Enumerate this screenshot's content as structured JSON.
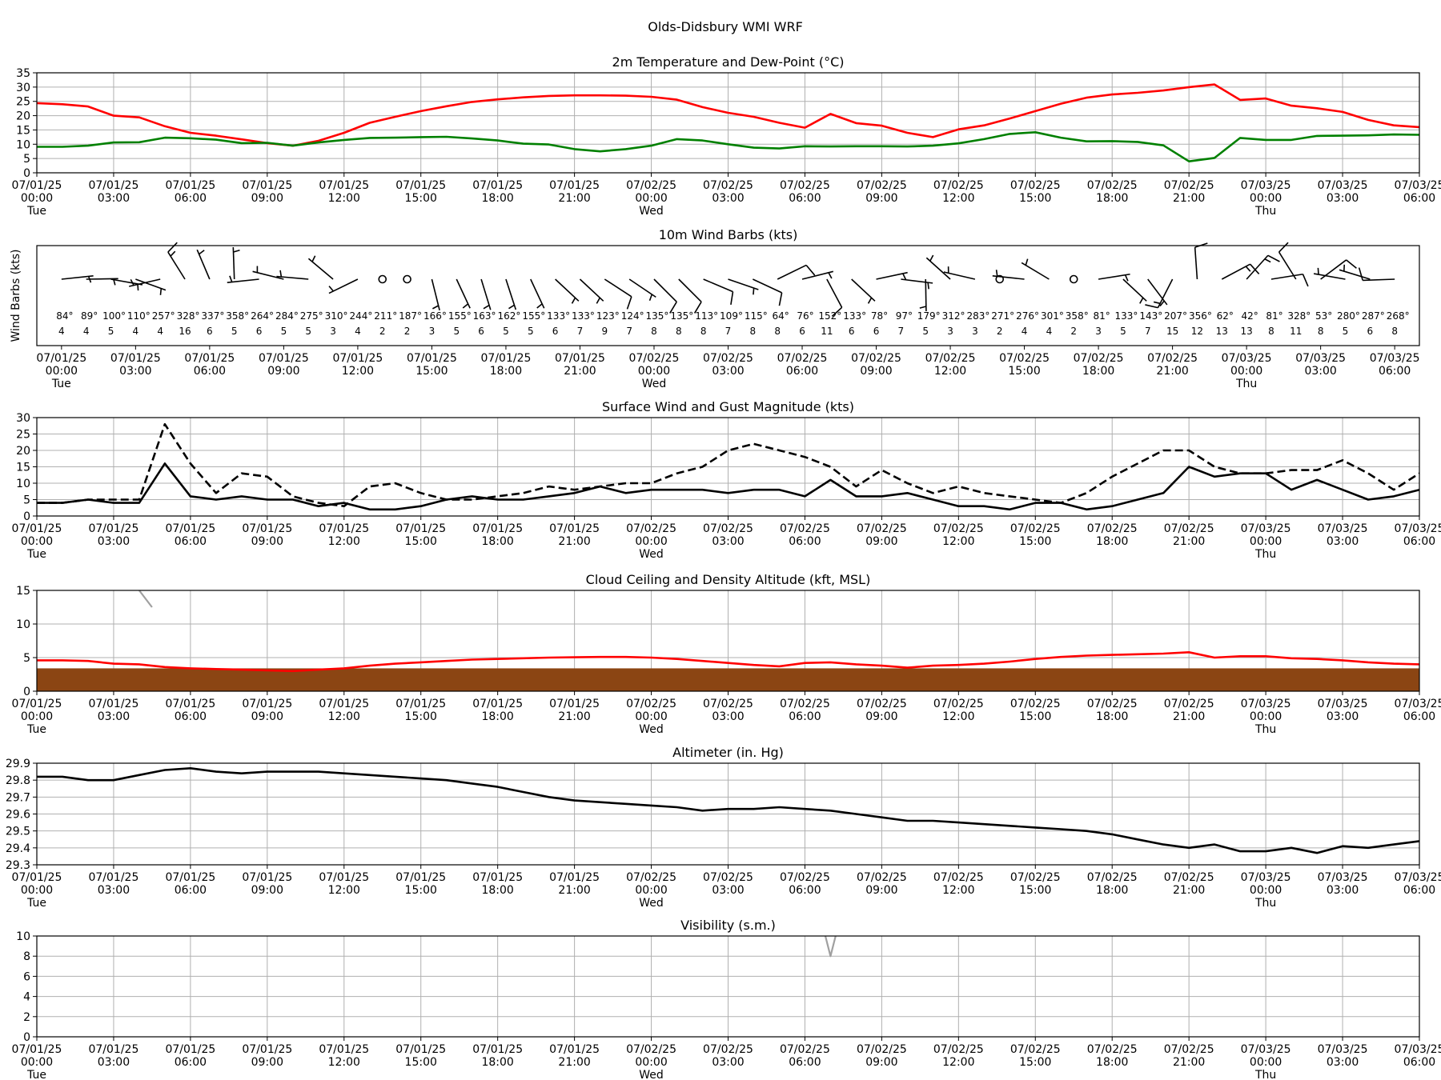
{
  "page_title": "Olds-Didsbury WMI WRF",
  "time_axis": {
    "ticks": [
      {
        "date": "07/01/25",
        "time": "00:00",
        "day": "Tue"
      },
      {
        "date": "07/01/25",
        "time": "03:00",
        "day": ""
      },
      {
        "date": "07/01/25",
        "time": "06:00",
        "day": ""
      },
      {
        "date": "07/01/25",
        "time": "09:00",
        "day": ""
      },
      {
        "date": "07/01/25",
        "time": "12:00",
        "day": ""
      },
      {
        "date": "07/01/25",
        "time": "15:00",
        "day": ""
      },
      {
        "date": "07/01/25",
        "time": "18:00",
        "day": ""
      },
      {
        "date": "07/01/25",
        "time": "21:00",
        "day": ""
      },
      {
        "date": "07/02/25",
        "time": "00:00",
        "day": "Wed"
      },
      {
        "date": "07/02/25",
        "time": "03:00",
        "day": ""
      },
      {
        "date": "07/02/25",
        "time": "06:00",
        "day": ""
      },
      {
        "date": "07/02/25",
        "time": "09:00",
        "day": ""
      },
      {
        "date": "07/02/25",
        "time": "12:00",
        "day": ""
      },
      {
        "date": "07/02/25",
        "time": "15:00",
        "day": ""
      },
      {
        "date": "07/02/25",
        "time": "18:00",
        "day": ""
      },
      {
        "date": "07/02/25",
        "time": "21:00",
        "day": ""
      },
      {
        "date": "07/03/25",
        "time": "00:00",
        "day": "Thu"
      },
      {
        "date": "07/03/25",
        "time": "03:00",
        "day": ""
      },
      {
        "date": "07/03/25",
        "time": "06:00",
        "day": ""
      }
    ]
  },
  "chart_data": [
    {
      "id": "temp",
      "type": "line",
      "title": "2m Temperature and Dew-Point (°C)",
      "ylabel": "",
      "ylim": [
        0,
        35
      ],
      "yticks": [
        0,
        5,
        10,
        15,
        20,
        25,
        30,
        35
      ],
      "xlim_hours": [
        0,
        54
      ],
      "grid": true,
      "colors": {
        "temperature": "#ff0000",
        "dewpoint": "#008000"
      },
      "x": [
        0,
        1,
        2,
        3,
        4,
        5,
        6,
        7,
        8,
        9,
        10,
        11,
        12,
        13,
        14,
        15,
        16,
        17,
        18,
        19,
        20,
        21,
        22,
        23,
        24,
        25,
        26,
        27,
        28,
        29,
        30,
        31,
        32,
        33,
        34,
        35,
        36,
        37,
        38,
        39,
        40,
        41,
        42,
        43,
        44,
        45,
        46,
        47,
        48,
        49,
        50,
        51,
        52,
        53,
        54
      ],
      "series": [
        {
          "key": "temperature",
          "values": [
            24.4,
            24.0,
            23.2,
            20.0,
            19.4,
            16.3,
            14.0,
            13.0,
            11.7,
            10.4,
            9.5,
            11.2,
            14.0,
            17.5,
            19.6,
            21.6,
            23.3,
            24.8,
            25.7,
            26.4,
            26.9,
            27.1,
            27.1,
            27.0,
            26.6,
            25.6,
            23.0,
            21.0,
            19.6,
            17.5,
            15.8,
            20.6,
            17.4,
            16.5,
            14.0,
            12.5,
            15.2,
            16.6,
            19.0,
            21.6,
            24.2,
            26.3,
            27.4,
            28.0,
            28.8,
            30.0,
            30.9,
            25.5,
            26.0,
            23.5,
            22.6,
            21.3,
            18.5,
            16.6,
            16.0
          ]
        },
        {
          "key": "dewpoint",
          "values": [
            9.1,
            9.1,
            9.5,
            10.6,
            10.7,
            12.3,
            12.1,
            11.6,
            10.4,
            10.5,
            9.5,
            10.6,
            11.5,
            12.2,
            12.3,
            12.5,
            12.6,
            12.0,
            11.3,
            10.2,
            9.9,
            8.3,
            7.5,
            8.3,
            9.5,
            11.8,
            11.3,
            10.0,
            8.8,
            8.5,
            9.3,
            9.2,
            9.3,
            9.3,
            9.2,
            9.5,
            10.3,
            11.8,
            13.6,
            14.2,
            12.3,
            11.0,
            11.1,
            10.8,
            9.6,
            4.0,
            5.2,
            12.2,
            11.5,
            11.5,
            12.9,
            13.0,
            13.1,
            13.4,
            13.3
          ]
        }
      ]
    },
    {
      "id": "barbs",
      "type": "wind_barbs",
      "title": "10m Wind Barbs (kts)",
      "ylabel": "Wind Barbs (kts)",
      "xlim_hours": [
        -1,
        55
      ],
      "x": [
        0,
        1,
        2,
        3,
        4,
        5,
        6,
        7,
        8,
        9,
        10,
        11,
        12,
        13,
        14,
        15,
        16,
        17,
        18,
        19,
        20,
        21,
        22,
        23,
        24,
        25,
        26,
        27,
        28,
        29,
        30,
        31,
        32,
        33,
        34,
        35,
        36,
        37,
        38,
        39,
        40,
        41,
        42,
        43,
        44,
        45,
        46,
        47,
        48,
        49,
        50,
        51,
        52,
        53,
        54
      ],
      "direction": [
        "84",
        "89",
        "100",
        "110",
        "257",
        "328",
        "337",
        "358",
        "264",
        "284",
        "275",
        "310",
        "244",
        "211",
        "187",
        "166",
        "155",
        "163",
        "162",
        "155",
        "133",
        "133",
        "123",
        "124",
        "135",
        "135",
        "113",
        "109",
        "115",
        "64",
        "76",
        "152",
        "133",
        "78",
        "97",
        "179",
        "312",
        "283",
        "271",
        "276",
        "301",
        "358",
        "81",
        "133",
        "143",
        "207",
        "356",
        "62",
        "42",
        "81",
        "328",
        "53",
        "280",
        "287",
        "268"
      ],
      "speed": [
        "4",
        "4",
        "5",
        "4",
        "4",
        "16",
        "6",
        "5",
        "6",
        "5",
        "5",
        "3",
        "4",
        "2",
        "2",
        "3",
        "5",
        "6",
        "5",
        "5",
        "6",
        "7",
        "9",
        "7",
        "8",
        "8",
        "8",
        "7",
        "8",
        "8",
        "6",
        "11",
        "6",
        "6",
        "7",
        "5",
        "3",
        "3",
        "2",
        "4",
        "4",
        "2",
        "3",
        "5",
        "7",
        "15",
        "12",
        "13",
        "13",
        "8",
        "11",
        "8",
        "5",
        "6",
        "8"
      ]
    },
    {
      "id": "wind",
      "type": "line",
      "title": "Surface Wind and Gust Magnitude (kts)",
      "ylabel": "",
      "ylim": [
        0,
        30
      ],
      "yticks": [
        0,
        5,
        10,
        15,
        20,
        25,
        30
      ],
      "xlim_hours": [
        0,
        54
      ],
      "grid": true,
      "x": [
        0,
        1,
        2,
        3,
        4,
        5,
        6,
        7,
        8,
        9,
        10,
        11,
        12,
        13,
        14,
        15,
        16,
        17,
        18,
        19,
        20,
        21,
        22,
        23,
        24,
        25,
        26,
        27,
        28,
        29,
        30,
        31,
        32,
        33,
        34,
        35,
        36,
        37,
        38,
        39,
        40,
        41,
        42,
        43,
        44,
        45,
        46,
        47,
        48,
        49,
        50,
        51,
        52,
        53,
        54
      ],
      "series": [
        {
          "key": "wind",
          "style": "solid",
          "values": [
            4,
            4,
            5,
            4,
            4,
            16,
            6,
            5,
            6,
            5,
            5,
            3,
            4,
            2,
            2,
            3,
            5,
            6,
            5,
            5,
            6,
            7,
            9,
            7,
            8,
            8,
            8,
            7,
            8,
            8,
            6,
            11,
            6,
            6,
            7,
            5,
            3,
            3,
            2,
            4,
            4,
            2,
            3,
            5,
            7,
            15,
            12,
            13,
            13,
            8,
            11,
            8,
            5,
            6,
            8
          ]
        },
        {
          "key": "gust",
          "style": "dashed",
          "values": [
            4,
            4,
            5,
            5,
            5,
            28,
            16,
            7,
            13,
            12,
            6,
            4,
            3,
            9,
            10,
            7,
            5,
            5,
            6,
            7,
            9,
            8,
            9,
            10,
            10,
            13,
            15,
            20,
            22,
            20,
            18,
            15,
            9,
            14,
            10,
            7,
            9,
            7,
            6,
            5,
            4,
            7,
            12,
            16,
            20,
            20,
            15,
            13,
            13,
            14,
            14,
            17,
            13,
            8,
            13
          ]
        }
      ]
    },
    {
      "id": "ceiling",
      "type": "line",
      "title": "Cloud Ceiling and Density Altitude (kft, MSL)",
      "ylabel": "",
      "ylim": [
        0,
        15
      ],
      "yticks": [
        0,
        5,
        10,
        15
      ],
      "xlim_hours": [
        0,
        54
      ],
      "grid": true,
      "colors": {
        "density_altitude": "#ff0000",
        "terrain": "#8b4513",
        "ceiling": "#a0a0a0"
      },
      "terrain_kft": 3.4,
      "ceiling_segment": {
        "x": [
          4.0,
          4.5
        ],
        "values": [
          15.0,
          12.5
        ]
      },
      "x": [
        0,
        1,
        2,
        3,
        4,
        5,
        6,
        7,
        8,
        9,
        10,
        11,
        12,
        13,
        14,
        15,
        16,
        17,
        18,
        19,
        20,
        21,
        22,
        23,
        24,
        25,
        26,
        27,
        28,
        29,
        30,
        31,
        32,
        33,
        34,
        35,
        36,
        37,
        38,
        39,
        40,
        41,
        42,
        43,
        44,
        45,
        46,
        47,
        48,
        49,
        50,
        51,
        52,
        53,
        54
      ],
      "series": [
        {
          "key": "density_altitude",
          "values": [
            4.6,
            4.6,
            4.5,
            4.1,
            4.0,
            3.6,
            3.4,
            3.3,
            3.2,
            3.1,
            3.0,
            3.2,
            3.4,
            3.8,
            4.1,
            4.3,
            4.5,
            4.7,
            4.8,
            4.9,
            5.0,
            5.05,
            5.1,
            5.1,
            5.0,
            4.8,
            4.5,
            4.2,
            3.9,
            3.7,
            4.2,
            4.3,
            4.0,
            3.8,
            3.5,
            3.8,
            3.9,
            4.1,
            4.4,
            4.8,
            5.1,
            5.3,
            5.4,
            5.5,
            5.6,
            5.8,
            5.0,
            5.2,
            5.2,
            4.9,
            4.8,
            4.6,
            4.3,
            4.1,
            4.0
          ]
        }
      ]
    },
    {
      "id": "altimeter",
      "type": "line",
      "title": "Altimeter (in. Hg)",
      "ylabel": "",
      "ylim": [
        29.3,
        29.9
      ],
      "yticks": [
        29.3,
        29.4,
        29.5,
        29.6,
        29.7,
        29.8,
        29.9
      ],
      "xlim_hours": [
        0,
        54
      ],
      "grid": true,
      "x": [
        0,
        1,
        2,
        3,
        4,
        5,
        6,
        7,
        8,
        9,
        10,
        11,
        12,
        13,
        14,
        15,
        16,
        17,
        18,
        19,
        20,
        21,
        22,
        23,
        24,
        25,
        26,
        27,
        28,
        29,
        30,
        31,
        32,
        33,
        34,
        35,
        36,
        37,
        38,
        39,
        40,
        41,
        42,
        43,
        44,
        45,
        46,
        47,
        48,
        49,
        50,
        51,
        52,
        53,
        54
      ],
      "series": [
        {
          "key": "altimeter",
          "values": [
            29.82,
            29.82,
            29.8,
            29.8,
            29.83,
            29.86,
            29.87,
            29.85,
            29.84,
            29.85,
            29.85,
            29.85,
            29.84,
            29.83,
            29.82,
            29.81,
            29.8,
            29.78,
            29.76,
            29.73,
            29.7,
            29.68,
            29.67,
            29.66,
            29.65,
            29.64,
            29.62,
            29.63,
            29.63,
            29.64,
            29.63,
            29.62,
            29.6,
            29.58,
            29.56,
            29.56,
            29.55,
            29.54,
            29.53,
            29.52,
            29.51,
            29.5,
            29.48,
            29.45,
            29.42,
            29.4,
            29.42,
            29.38,
            29.38,
            29.4,
            29.37,
            29.41,
            29.4,
            29.42,
            29.44
          ]
        }
      ]
    },
    {
      "id": "visibility",
      "type": "line",
      "title": "Visibility (s.m.)",
      "ylabel": "",
      "ylim": [
        0,
        10
      ],
      "yticks": [
        0,
        2,
        4,
        6,
        8,
        10
      ],
      "xlim_hours": [
        0,
        54
      ],
      "grid": true,
      "colors": {
        "visibility": "#a0a0a0"
      },
      "x": [
        30.8,
        31.0,
        31.2
      ],
      "series": [
        {
          "key": "visibility",
          "values": [
            10,
            8.0,
            10
          ]
        }
      ]
    }
  ]
}
